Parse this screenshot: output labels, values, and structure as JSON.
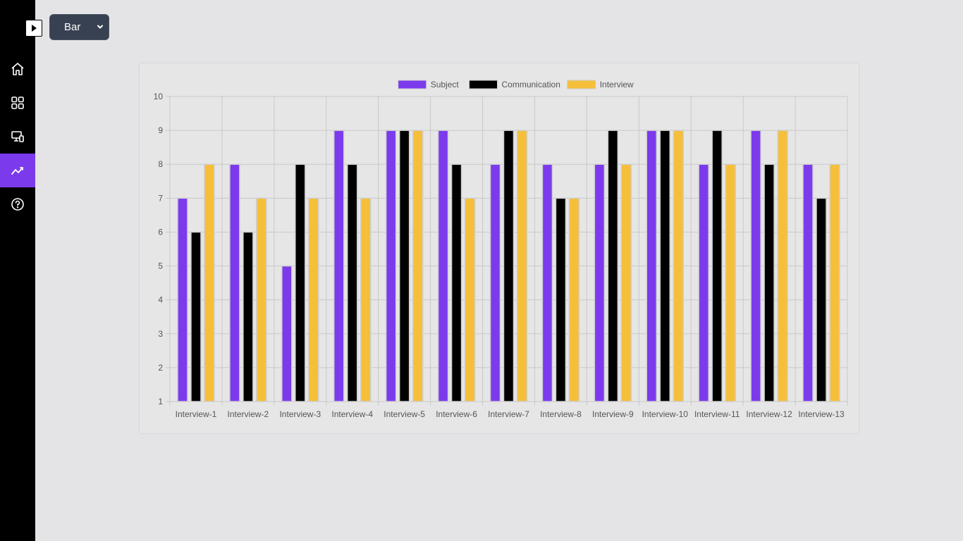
{
  "toolbar": {
    "chart_type_select": {
      "selected": "Bar"
    }
  },
  "sidebar": {
    "items": [
      {
        "icon": "home-icon",
        "active": false
      },
      {
        "icon": "grid-icon",
        "active": false
      },
      {
        "icon": "devices-icon",
        "active": false
      },
      {
        "icon": "analytics-icon",
        "active": true
      },
      {
        "icon": "help-icon",
        "active": false
      }
    ]
  },
  "colors": {
    "accent": "#7c3aed",
    "subject": "#7c3aed",
    "communication": "#000000",
    "interview": "#f6bf3a"
  },
  "chart_data": {
    "type": "bar",
    "categories": [
      "Interview-1",
      "Interview-2",
      "Interview-3",
      "Interview-4",
      "Interview-5",
      "Interview-6",
      "Interview-7",
      "Interview-8",
      "Interview-9",
      "Interview-10",
      "Interview-11",
      "Interview-12",
      "Interview-13"
    ],
    "series": [
      {
        "name": "Subject",
        "color": "#7c3aed",
        "values": [
          7,
          8,
          5,
          9,
          9,
          9,
          8,
          8,
          8,
          9,
          8,
          9,
          8
        ]
      },
      {
        "name": "Communication",
        "color": "#000000",
        "values": [
          6,
          6,
          8,
          8,
          9,
          8,
          9,
          7,
          9,
          9,
          9,
          8,
          7
        ]
      },
      {
        "name": "Interview",
        "color": "#f6bf3a",
        "values": [
          8,
          7,
          7,
          7,
          9,
          7,
          9,
          7,
          8,
          9,
          8,
          9,
          8
        ]
      }
    ],
    "ylim": [
      1,
      10
    ],
    "yticks": [
      "1",
      "2",
      "3",
      "4",
      "5",
      "6",
      "7",
      "8",
      "9",
      "10"
    ],
    "grid": true,
    "legend_position": "top-center"
  }
}
